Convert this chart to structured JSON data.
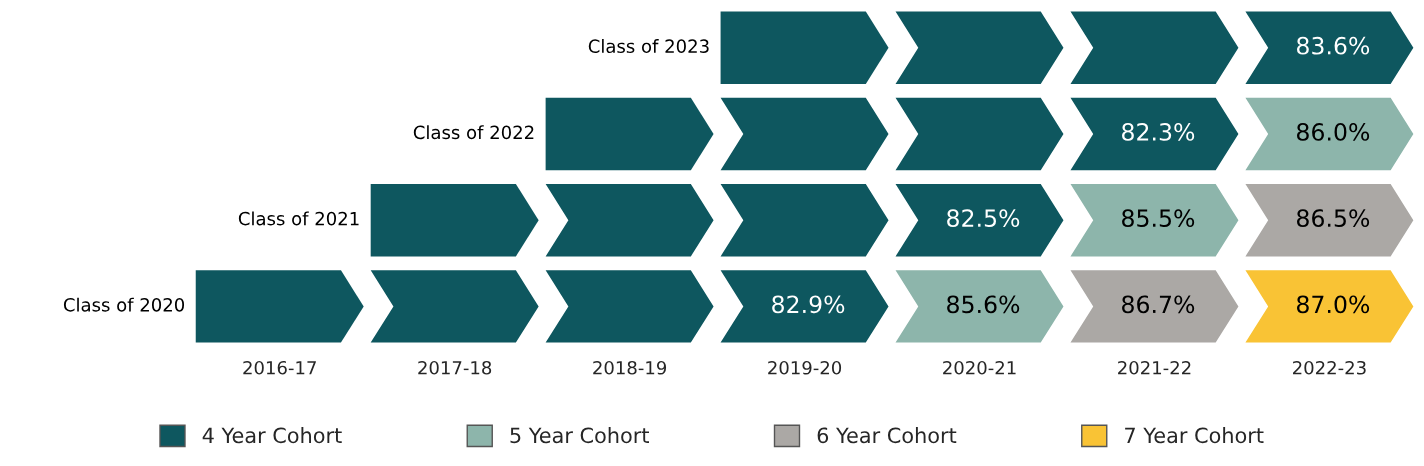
{
  "chart_data": {
    "type": "other",
    "categories": [
      "2016-17",
      "2017-18",
      "2018-19",
      "2019-20",
      "2020-21",
      "2021-22",
      "2022-23"
    ],
    "y_categories": [
      "Class of 2023",
      "Class of 2022",
      "Class of 2021",
      "Class of 2020"
    ],
    "colors": [
      [
        null,
        null,
        null,
        "#0e575f",
        "#0e575f",
        "#0e575f",
        "#0e575f"
      ],
      [
        null,
        null,
        "#0e575f",
        "#0e575f",
        "#0e575f",
        "#0e575f",
        "#8db5ab"
      ],
      [
        null,
        "#0e575f",
        "#0e575f",
        "#0e575f",
        "#0e575f",
        "#8db5ab",
        "#aba8a5"
      ],
      [
        "#0e575f",
        "#0e575f",
        "#0e575f",
        "#0e575f",
        "#8db5ab",
        "#aba8a5",
        "#f9c335"
      ]
    ],
    "series": [
      {
        "name": "4 Year Cohort",
        "color": "#0e575f",
        "values": [
          null,
          null,
          null,
          82.9,
          82.5,
          82.3,
          83.6
        ],
        "value_labels": [
          null,
          null,
          null,
          "82.9%",
          "82.5%",
          "82.3%",
          "83.6%"
        ]
      },
      {
        "name": "5 Year Cohort",
        "color": "#8db5ab",
        "values": [
          null,
          null,
          null,
          null,
          85.6,
          85.5,
          86.0
        ],
        "value_labels": [
          null,
          null,
          null,
          null,
          "85.6%",
          "85.5%",
          "86.0%"
        ]
      },
      {
        "name": "6 Year Cohort",
        "color": "#aba8a5",
        "values": [
          null,
          null,
          null,
          null,
          null,
          86.7,
          86.5
        ],
        "value_labels": [
          null,
          null,
          null,
          null,
          null,
          "86.7%",
          "86.5%"
        ]
      },
      {
        "name": "7 Year Cohort",
        "color": "#f9c335",
        "values": [
          null,
          null,
          null,
          null,
          null,
          null,
          87.0
        ],
        "value_labels": [
          null,
          null,
          null,
          null,
          null,
          null,
          "87.0%"
        ]
      }
    ],
    "legend": "bottom"
  }
}
